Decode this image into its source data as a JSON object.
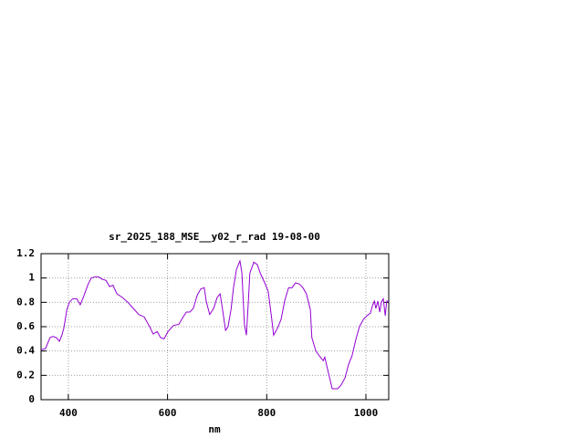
{
  "chart_data": {
    "type": "line",
    "title": "sr_2025_188_MSE__y02_r_rad 19-08-00",
    "x_label": "nm",
    "xlim": [
      345,
      1046
    ],
    "xticks": [
      400,
      600,
      800,
      1000
    ],
    "ylim": [
      0,
      1.2
    ],
    "yticks": [
      0,
      0.2,
      0.4,
      0.6,
      0.8,
      1,
      1.2
    ],
    "grid": true,
    "series": [
      {
        "color": "#9400d3",
        "x": [
          345,
          354,
          363,
          369,
          376,
          382,
          387,
          391,
          397,
          402,
          409,
          417,
          424,
          431,
          439,
          446,
          454,
          461,
          468,
          476,
          483,
          490,
          498,
          509,
          520,
          531,
          542,
          553,
          564,
          571,
          579,
          586,
          593,
          601,
          612,
          623,
          630,
          638,
          645,
          652,
          660,
          667,
          674,
          678,
          685,
          693,
          700,
          706,
          711,
          717,
          722,
          728,
          733,
          739,
          746,
          750,
          755,
          759,
          763,
          766,
          774,
          781,
          787,
          796,
          803,
          809,
          814,
          822,
          829,
          836,
          844,
          851,
          858,
          866,
          873,
          880,
          888,
          891,
          899,
          906,
          914,
          917,
          925,
          932,
          943,
          950,
          958,
          965,
          972,
          980,
          987,
          995,
          1002,
          1009,
          1013,
          1017,
          1020,
          1024,
          1028,
          1031,
          1035,
          1039,
          1042,
          1046
        ],
        "values": [
          0.41,
          0.42,
          0.51,
          0.52,
          0.51,
          0.48,
          0.53,
          0.59,
          0.74,
          0.8,
          0.83,
          0.83,
          0.78,
          0.85,
          0.94,
          1.0,
          1.01,
          1.01,
          0.99,
          0.98,
          0.93,
          0.94,
          0.87,
          0.84,
          0.8,
          0.75,
          0.7,
          0.68,
          0.6,
          0.54,
          0.56,
          0.51,
          0.5,
          0.56,
          0.61,
          0.62,
          0.67,
          0.72,
          0.72,
          0.75,
          0.86,
          0.91,
          0.92,
          0.81,
          0.7,
          0.75,
          0.84,
          0.87,
          0.74,
          0.57,
          0.6,
          0.74,
          0.92,
          1.07,
          1.14,
          1.04,
          0.62,
          0.53,
          0.81,
          1.04,
          1.13,
          1.11,
          1.04,
          0.96,
          0.89,
          0.7,
          0.53,
          0.59,
          0.66,
          0.81,
          0.92,
          0.92,
          0.96,
          0.95,
          0.92,
          0.87,
          0.74,
          0.51,
          0.4,
          0.36,
          0.32,
          0.35,
          0.21,
          0.09,
          0.09,
          0.12,
          0.18,
          0.29,
          0.36,
          0.5,
          0.6,
          0.66,
          0.69,
          0.71,
          0.77,
          0.81,
          0.75,
          0.81,
          0.72,
          0.8,
          0.83,
          0.69,
          0.81,
          0.81
        ]
      }
    ]
  }
}
